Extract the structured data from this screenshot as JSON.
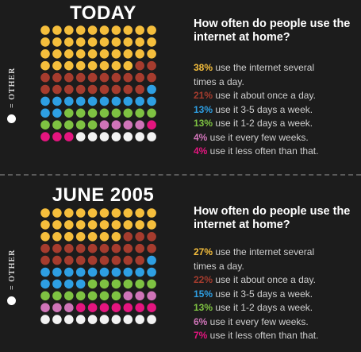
{
  "colors": {
    "yellow": "#f5be3c",
    "red": "#a63c2e",
    "blue": "#2e9fe3",
    "green": "#7ec242",
    "pink": "#cf74b8",
    "magenta": "#e4157f",
    "white": "#f2f2f2",
    "other": "#ffffff"
  },
  "other_label": "= OTHER",
  "panels": [
    {
      "title": "TODAY",
      "question": "How often do people use the internet at home?",
      "legend": [
        {
          "pct": "38%",
          "text": " use the internet several",
          "text2": "times a day.",
          "color": "yellow"
        },
        {
          "pct": "21%",
          "text": " use it about once a day.",
          "color": "red"
        },
        {
          "pct": "13%",
          "text": " use it 3-5 days a week.",
          "color": "blue"
        },
        {
          "pct": "13%",
          "text": " use it 1-2 days a week.",
          "color": "green"
        },
        {
          "pct": "4%",
          "text": " use it every few weeks.",
          "color": "pink"
        },
        {
          "pct": "4%",
          "text": " use it less often than that.",
          "color": "magenta"
        }
      ]
    },
    {
      "title": "JUNE 2005",
      "question": "How often do people use the internet at home?",
      "legend": [
        {
          "pct": "27%",
          "text": " use the internet several",
          "text2": "times a day.",
          "color": "yellow"
        },
        {
          "pct": "22%",
          "text": " use it about once a day.",
          "color": "red"
        },
        {
          "pct": "15%",
          "text": " use it 3-5 days a week.",
          "color": "blue"
        },
        {
          "pct": "13%",
          "text": " use it 1-2 days a week.",
          "color": "green"
        },
        {
          "pct": "6%",
          "text": " use it every few weeks.",
          "color": "pink"
        },
        {
          "pct": "7%",
          "text": " use it less often than that.",
          "color": "magenta"
        }
      ]
    }
  ],
  "chart_data": [
    {
      "type": "waffle",
      "title": "TODAY",
      "categories": [
        "use the internet several times a day",
        "use it about once a day",
        "use it 3-5 days a week",
        "use it 1-2 days a week",
        "use it every few weeks",
        "use it less often than that",
        "OTHER"
      ],
      "values": [
        38,
        21,
        13,
        13,
        4,
        4,
        7
      ]
    },
    {
      "type": "waffle",
      "title": "JUNE 2005",
      "categories": [
        "use the internet several times a day",
        "use it about once a day",
        "use it 3-5 days a week",
        "use it 1-2 days a week",
        "use it every few weeks",
        "use it less often than that",
        "OTHER"
      ],
      "values": [
        27,
        22,
        15,
        13,
        6,
        7,
        10
      ]
    }
  ]
}
